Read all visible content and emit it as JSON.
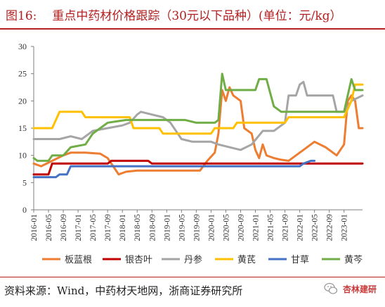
{
  "header": {
    "figure_no": "图16:",
    "title": "重点中药材价格跟踪（30元以下品种）(单位：元/kg）"
  },
  "source": "资料来源：Wind，中药材天地网，浙商证券研究所",
  "watermark": "杏林建研",
  "colors": {
    "accent": "#b32020",
    "板蓝根": "#ED7D31",
    "银杏叶": "#C00000",
    "丹参": "#A5A5A5",
    "黄芪": "#FFC000",
    "甘草": "#4472C4",
    "黄芩": "#70AD47"
  },
  "chart_data": {
    "type": "line",
    "ylim": [
      0,
      30
    ],
    "yticks": [
      0,
      5,
      10,
      15,
      20,
      25,
      30
    ],
    "xlim": [
      "2016-01",
      "2023-06"
    ],
    "xticks": [
      "2016-01",
      "2016-05",
      "2016-09",
      "2017-01",
      "2017-05",
      "2017-09",
      "2018-01",
      "2018-05",
      "2018-09",
      "2019-01",
      "2019-05",
      "2019-09",
      "2020-01",
      "2020-05",
      "2020-09",
      "2021-01",
      "2021-05",
      "2021-09",
      "2022-01",
      "2022-05",
      "2022-09",
      "2023-01"
    ],
    "legend_position": "bottom",
    "grid": false,
    "series": [
      {
        "name": "板蓝根",
        "points": [
          [
            "2016-01",
            8.5
          ],
          [
            "2016-03",
            8
          ],
          [
            "2016-06",
            9
          ],
          [
            "2016-09",
            10
          ],
          [
            "2016-11",
            10.5
          ],
          [
            "2017-03",
            10.5
          ],
          [
            "2017-07",
            10.3
          ],
          [
            "2017-09",
            9.5
          ],
          [
            "2017-11",
            7.5
          ],
          [
            "2017-12",
            6.5
          ],
          [
            "2018-02",
            7
          ],
          [
            "2018-05",
            7.2
          ],
          [
            "2019-10",
            7.2
          ],
          [
            "2019-12",
            9
          ],
          [
            "2020-02",
            10.5
          ],
          [
            "2020-03",
            14
          ],
          [
            "2020-04",
            22
          ],
          [
            "2020-05",
            20
          ],
          [
            "2020-06",
            22.5
          ],
          [
            "2020-07",
            21
          ],
          [
            "2020-09",
            20
          ],
          [
            "2020-10",
            15
          ],
          [
            "2020-12",
            14
          ],
          [
            "2021-01",
            11
          ],
          [
            "2021-02",
            9.5
          ],
          [
            "2021-03",
            12
          ],
          [
            "2021-04",
            10
          ],
          [
            "2021-06",
            9.5
          ],
          [
            "2021-08",
            9.2
          ],
          [
            "2021-10",
            9
          ],
          [
            "2021-12",
            10
          ],
          [
            "2022-02",
            11
          ],
          [
            "2022-05",
            12.5
          ],
          [
            "2022-08",
            11.5
          ],
          [
            "2022-11",
            10
          ],
          [
            "2023-01",
            12
          ],
          [
            "2023-02",
            20
          ],
          [
            "2023-03",
            21
          ],
          [
            "2023-04",
            20
          ],
          [
            "2023-05",
            15
          ],
          [
            "2023-06",
            15
          ]
        ]
      },
      {
        "name": "银杏叶",
        "points": [
          [
            "2016-01",
            6.5
          ],
          [
            "2016-05",
            6.5
          ],
          [
            "2016-06",
            8.5
          ],
          [
            "2017-09",
            8.5
          ],
          [
            "2017-10",
            9
          ],
          [
            "2018-08",
            9
          ],
          [
            "2018-09",
            8.5
          ],
          [
            "2023-06",
            8.5
          ]
        ]
      },
      {
        "name": "丹参",
        "points": [
          [
            "2016-01",
            13
          ],
          [
            "2016-08",
            13
          ],
          [
            "2016-11",
            13.5
          ],
          [
            "2017-02",
            13
          ],
          [
            "2017-05",
            14.5
          ],
          [
            "2017-09",
            15
          ],
          [
            "2018-01",
            15.5
          ],
          [
            "2018-03",
            16
          ],
          [
            "2018-05",
            17.5
          ],
          [
            "2018-06",
            18
          ],
          [
            "2018-09",
            17.5
          ],
          [
            "2018-12",
            17
          ],
          [
            "2019-02",
            16
          ],
          [
            "2019-05",
            13
          ],
          [
            "2019-08",
            12.5
          ],
          [
            "2019-11",
            12.5
          ],
          [
            "2020-01",
            12.5
          ],
          [
            "2020-03",
            12
          ],
          [
            "2020-06",
            11.5
          ],
          [
            "2020-09",
            11
          ],
          [
            "2020-12",
            12
          ],
          [
            "2021-03",
            14.5
          ],
          [
            "2021-06",
            14.5
          ],
          [
            "2021-09",
            16
          ],
          [
            "2021-10",
            21
          ],
          [
            "2021-12",
            21
          ],
          [
            "2022-01",
            23
          ],
          [
            "2022-02",
            23.5
          ],
          [
            "2022-03",
            21
          ],
          [
            "2022-07",
            21
          ],
          [
            "2022-10",
            21
          ],
          [
            "2022-11",
            18
          ],
          [
            "2023-01",
            18
          ],
          [
            "2023-03",
            20
          ],
          [
            "2023-06",
            21
          ]
        ]
      },
      {
        "name": "黄芪",
        "points": [
          [
            "2016-01",
            15
          ],
          [
            "2016-06",
            15
          ],
          [
            "2016-08",
            18
          ],
          [
            "2017-02",
            18
          ],
          [
            "2017-03",
            17
          ],
          [
            "2018-03",
            17
          ],
          [
            "2018-04",
            15
          ],
          [
            "2018-11",
            15
          ],
          [
            "2018-12",
            14
          ],
          [
            "2020-01",
            14
          ],
          [
            "2020-02",
            15
          ],
          [
            "2020-07",
            15
          ],
          [
            "2020-08",
            16
          ],
          [
            "2021-09",
            16
          ],
          [
            "2021-10",
            17
          ],
          [
            "2023-01",
            17
          ],
          [
            "2023-03",
            20
          ],
          [
            "2023-04",
            23
          ],
          [
            "2023-06",
            23
          ]
        ]
      },
      {
        "name": "甘草",
        "points": [
          [
            "2016-01",
            6
          ],
          [
            "2016-07",
            6
          ],
          [
            "2016-08",
            6.5
          ],
          [
            "2016-10",
            6.5
          ],
          [
            "2016-11",
            8
          ],
          [
            "2022-01",
            8
          ],
          [
            "2022-02",
            8.5
          ],
          [
            "2022-04",
            9
          ],
          [
            "2022-05",
            9
          ]
        ]
      },
      {
        "name": "黄芩",
        "points": [
          [
            "2016-01",
            9.5
          ],
          [
            "2016-02",
            9
          ],
          [
            "2016-05",
            9
          ],
          [
            "2016-06",
            10
          ],
          [
            "2016-09",
            10
          ],
          [
            "2016-11",
            11.5
          ],
          [
            "2017-03",
            12
          ],
          [
            "2017-05",
            14
          ],
          [
            "2017-07",
            15
          ],
          [
            "2017-09",
            16
          ],
          [
            "2018-02",
            16.5
          ],
          [
            "2018-06",
            16.5
          ],
          [
            "2019-06",
            16.5
          ],
          [
            "2019-09",
            16
          ],
          [
            "2020-02",
            16
          ],
          [
            "2020-03",
            16.5
          ],
          [
            "2020-04",
            25
          ],
          [
            "2020-05",
            22
          ],
          [
            "2021-01",
            22
          ],
          [
            "2021-02",
            24
          ],
          [
            "2021-04",
            24
          ],
          [
            "2021-06",
            19
          ],
          [
            "2021-08",
            18
          ],
          [
            "2022-01",
            18
          ],
          [
            "2022-04",
            18
          ],
          [
            "2023-01",
            18
          ],
          [
            "2023-03",
            24
          ],
          [
            "2023-04",
            22
          ],
          [
            "2023-06",
            22
          ]
        ]
      }
    ]
  }
}
